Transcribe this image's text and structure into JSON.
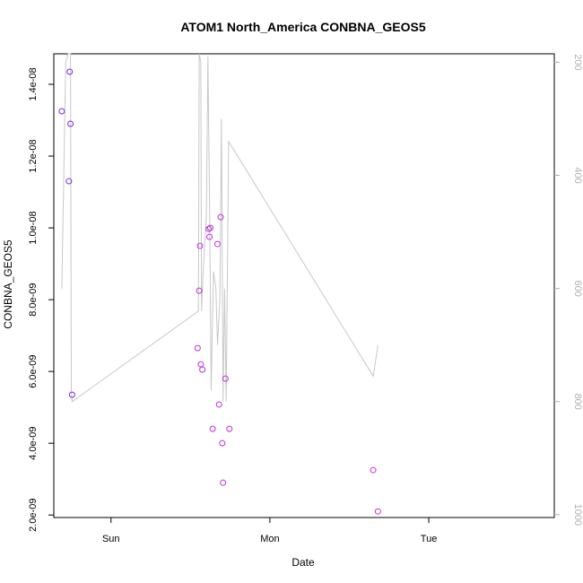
{
  "chart_data": {
    "type": "scatter",
    "title": "ATOM1 North_America CONBNA_GEOS5",
    "xlabel": "Date",
    "ylabel": "CONBNA_GEOS5",
    "x_ticks": [
      {
        "label": "Sun",
        "value": 0
      },
      {
        "label": "Mon",
        "value": 1
      },
      {
        "label": "Tue",
        "value": 2
      }
    ],
    "y_ticks": [
      {
        "label": "2.0e-09",
        "value": 2e-09
      },
      {
        "label": "4.0e-09",
        "value": 4e-09
      },
      {
        "label": "6.0e-09",
        "value": 6e-09
      },
      {
        "label": "8.0e-09",
        "value": 8e-09
      },
      {
        "label": "1.0e-08",
        "value": 1e-08
      },
      {
        "label": "1.2e-08",
        "value": 1.2e-08
      },
      {
        "label": "1.4e-08",
        "value": 1.4e-08
      }
    ],
    "y2_ticks": [
      {
        "label": "200",
        "value": 200
      },
      {
        "label": "400",
        "value": 400
      },
      {
        "label": "600",
        "value": 600
      },
      {
        "label": "800",
        "value": 800
      },
      {
        "label": "1000",
        "value": 1000
      }
    ],
    "xlim": [
      -0.36,
      2.79
    ],
    "ylim": [
      1.93e-09,
      1.485e-08
    ],
    "y2lim": [
      185,
      1005
    ],
    "y2_reversed": true,
    "grid": false,
    "colors": {
      "line": "#c8c8c8",
      "points_low_altitude": "#7b2be0",
      "points_high_altitude": "#d22ad2",
      "right_axis": "#b0b0b0"
    },
    "series": [
      {
        "type": "points",
        "points": [
          {
            "x": -0.31,
            "y": 1.325e-08,
            "color": "#7b2be0"
          },
          {
            "x": -0.265,
            "y": 1.13e-08,
            "color": "#7b2be0"
          },
          {
            "x": -0.26,
            "y": 1.435e-08,
            "color": "#7b2be0"
          },
          {
            "x": -0.255,
            "y": 1.29e-08,
            "color": "#7b2be0"
          },
          {
            "x": -0.245,
            "y": 5.35e-09,
            "color": "#7b2be0"
          },
          {
            "x": 0.545,
            "y": 6.65e-09,
            "color": "#c030dc"
          },
          {
            "x": 0.555,
            "y": 8.25e-09,
            "color": "#c030dc"
          },
          {
            "x": 0.56,
            "y": 9.5e-09,
            "color": "#c030dc"
          },
          {
            "x": 0.565,
            "y": 6.2e-09,
            "color": "#c030dc"
          },
          {
            "x": 0.575,
            "y": 6.05e-09,
            "color": "#c030dc"
          },
          {
            "x": 0.615,
            "y": 9.97e-09,
            "color": "#c030dc"
          },
          {
            "x": 0.62,
            "y": 9.75e-09,
            "color": "#c030dc"
          },
          {
            "x": 0.625,
            "y": 1e-08,
            "color": "#c030dc"
          },
          {
            "x": 0.64,
            "y": 4.4e-09,
            "color": "#c030dc"
          },
          {
            "x": 0.67,
            "y": 9.55e-09,
            "color": "#c030dc"
          },
          {
            "x": 0.68,
            "y": 5.08e-09,
            "color": "#c030dc"
          },
          {
            "x": 0.69,
            "y": 1.03e-08,
            "color": "#c030dc"
          },
          {
            "x": 0.7,
            "y": 4e-09,
            "color": "#c030dc"
          },
          {
            "x": 0.705,
            "y": 2.9e-09,
            "color": "#c030dc"
          },
          {
            "x": 0.72,
            "y": 5.8e-09,
            "color": "#c030dc"
          },
          {
            "x": 0.745,
            "y": 4.4e-09,
            "color": "#c030dc"
          },
          {
            "x": 1.65,
            "y": 3.25e-09,
            "color": "#d22ad2"
          },
          {
            "x": 1.68,
            "y": 2.1e-09,
            "color": "#d22ad2"
          }
        ]
      },
      {
        "type": "line",
        "name": "",
        "axis": "right",
        "x": [
          -0.31,
          -0.285,
          -0.27,
          -0.255,
          -0.25,
          -0.245,
          0.55,
          0.555,
          0.565,
          0.57,
          0.58,
          0.6,
          0.61,
          0.62,
          0.63,
          0.645,
          0.66,
          0.67,
          0.685,
          0.695,
          0.705,
          0.715,
          0.725,
          0.74,
          1.65,
          1.68
        ],
        "y": [
          600,
          200,
          185,
          185,
          780,
          800,
          640,
          185,
          200,
          640,
          570,
          470,
          190,
          440,
          780,
          570,
          600,
          700,
          620,
          300,
          800,
          600,
          800,
          340,
          755,
          700
        ]
      }
    ]
  }
}
